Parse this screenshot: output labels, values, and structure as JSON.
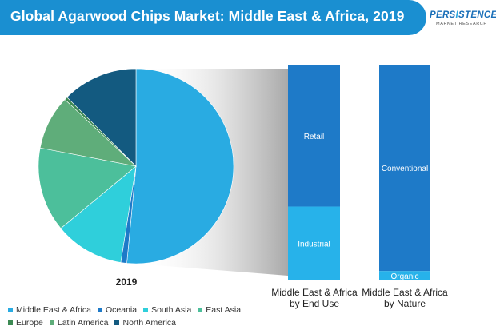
{
  "header": {
    "title": "Global Agarwood Chips Market: Middle East & Africa, 2019",
    "logo_main_a": "PERS",
    "logo_main_b": "I",
    "logo_main_c": "STENCE",
    "logo_sub": "MARKET RESEARCH"
  },
  "colors": {
    "header": "#1a8fd1",
    "middle_east_africa": "#29abe2",
    "oceania": "#1e7ac8",
    "south_asia": "#2fcfdb",
    "east_asia": "#4cbf9b",
    "europe": "#3d8a53",
    "latin_america": "#5fad7a",
    "north_america": "#135a80",
    "retail": "#1e7ac8",
    "industrial": "#27b2ea",
    "conventional": "#1e7ac8",
    "organic": "#27b2ea"
  },
  "chart_data": [
    {
      "type": "pie",
      "xlabel": "2019",
      "slices": [
        {
          "name": "Middle East & Africa",
          "value": 51.5,
          "color": "#29abe2"
        },
        {
          "name": "Oceania",
          "value": 1.0,
          "color": "#1e7ac8"
        },
        {
          "name": "South Asia",
          "value": 11.5,
          "color": "#2fcfdb"
        },
        {
          "name": "East Asia",
          "value": 14.0,
          "color": "#4cbf9b"
        },
        {
          "name": "Europe",
          "value": 0.5,
          "color": "#3d8a53"
        },
        {
          "name": "Latin America",
          "value": 9.0,
          "color": "#5fad7a"
        },
        {
          "name": "North America",
          "value": 12.5,
          "color": "#135a80"
        }
      ],
      "draw_order": [
        "Middle East & Africa",
        "Oceania",
        "South Asia",
        "East Asia",
        "Latin America",
        "Europe",
        "North America"
      ],
      "legend": [
        "Middle East & Africa",
        "Oceania",
        "South Asia",
        "East Asia",
        "Europe",
        "Latin America",
        "North America"
      ]
    },
    {
      "type": "bar",
      "stacked": true,
      "xlabel": "Middle East & Africa\nby End Use",
      "segments": [
        {
          "name": "Retail",
          "value": 66,
          "color": "#1e7ac8"
        },
        {
          "name": "Industrial",
          "value": 34,
          "color": "#27b2ea"
        }
      ]
    },
    {
      "type": "bar",
      "stacked": true,
      "xlabel": "Middle East & Africa\nby Nature",
      "segments": [
        {
          "name": "Conventional",
          "value": 96,
          "color": "#1e7ac8"
        },
        {
          "name": "Organic",
          "value": 4,
          "color": "#27b2ea"
        }
      ]
    }
  ]
}
